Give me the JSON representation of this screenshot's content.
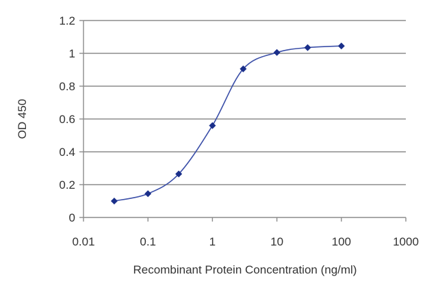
{
  "chart_data": {
    "type": "line",
    "title": "",
    "xlabel": "Recombinant Protein Concentration (ng/ml)",
    "ylabel": "OD 450",
    "x_scale": "log",
    "xlim": [
      0.01,
      1000
    ],
    "ylim": [
      0,
      1.2
    ],
    "x_ticks": [
      "0.01",
      "0.1",
      "1",
      "10",
      "100",
      "1000"
    ],
    "y_ticks": [
      "0",
      "0.2",
      "0.4",
      "0.6",
      "0.8",
      "1",
      "1.2"
    ],
    "grid": "horizontal",
    "series": [
      {
        "x": [
          0.03,
          0.1,
          0.3,
          1,
          3,
          10,
          30,
          100
        ],
        "y": [
          0.1,
          0.145,
          0.265,
          0.56,
          0.905,
          1.005,
          1.035,
          1.045
        ]
      }
    ],
    "colors": {
      "line": "#3b4fa8",
      "marker": "#1a2f8a",
      "grid": "#8c8c8c",
      "axis": "#8c8c8c"
    }
  }
}
